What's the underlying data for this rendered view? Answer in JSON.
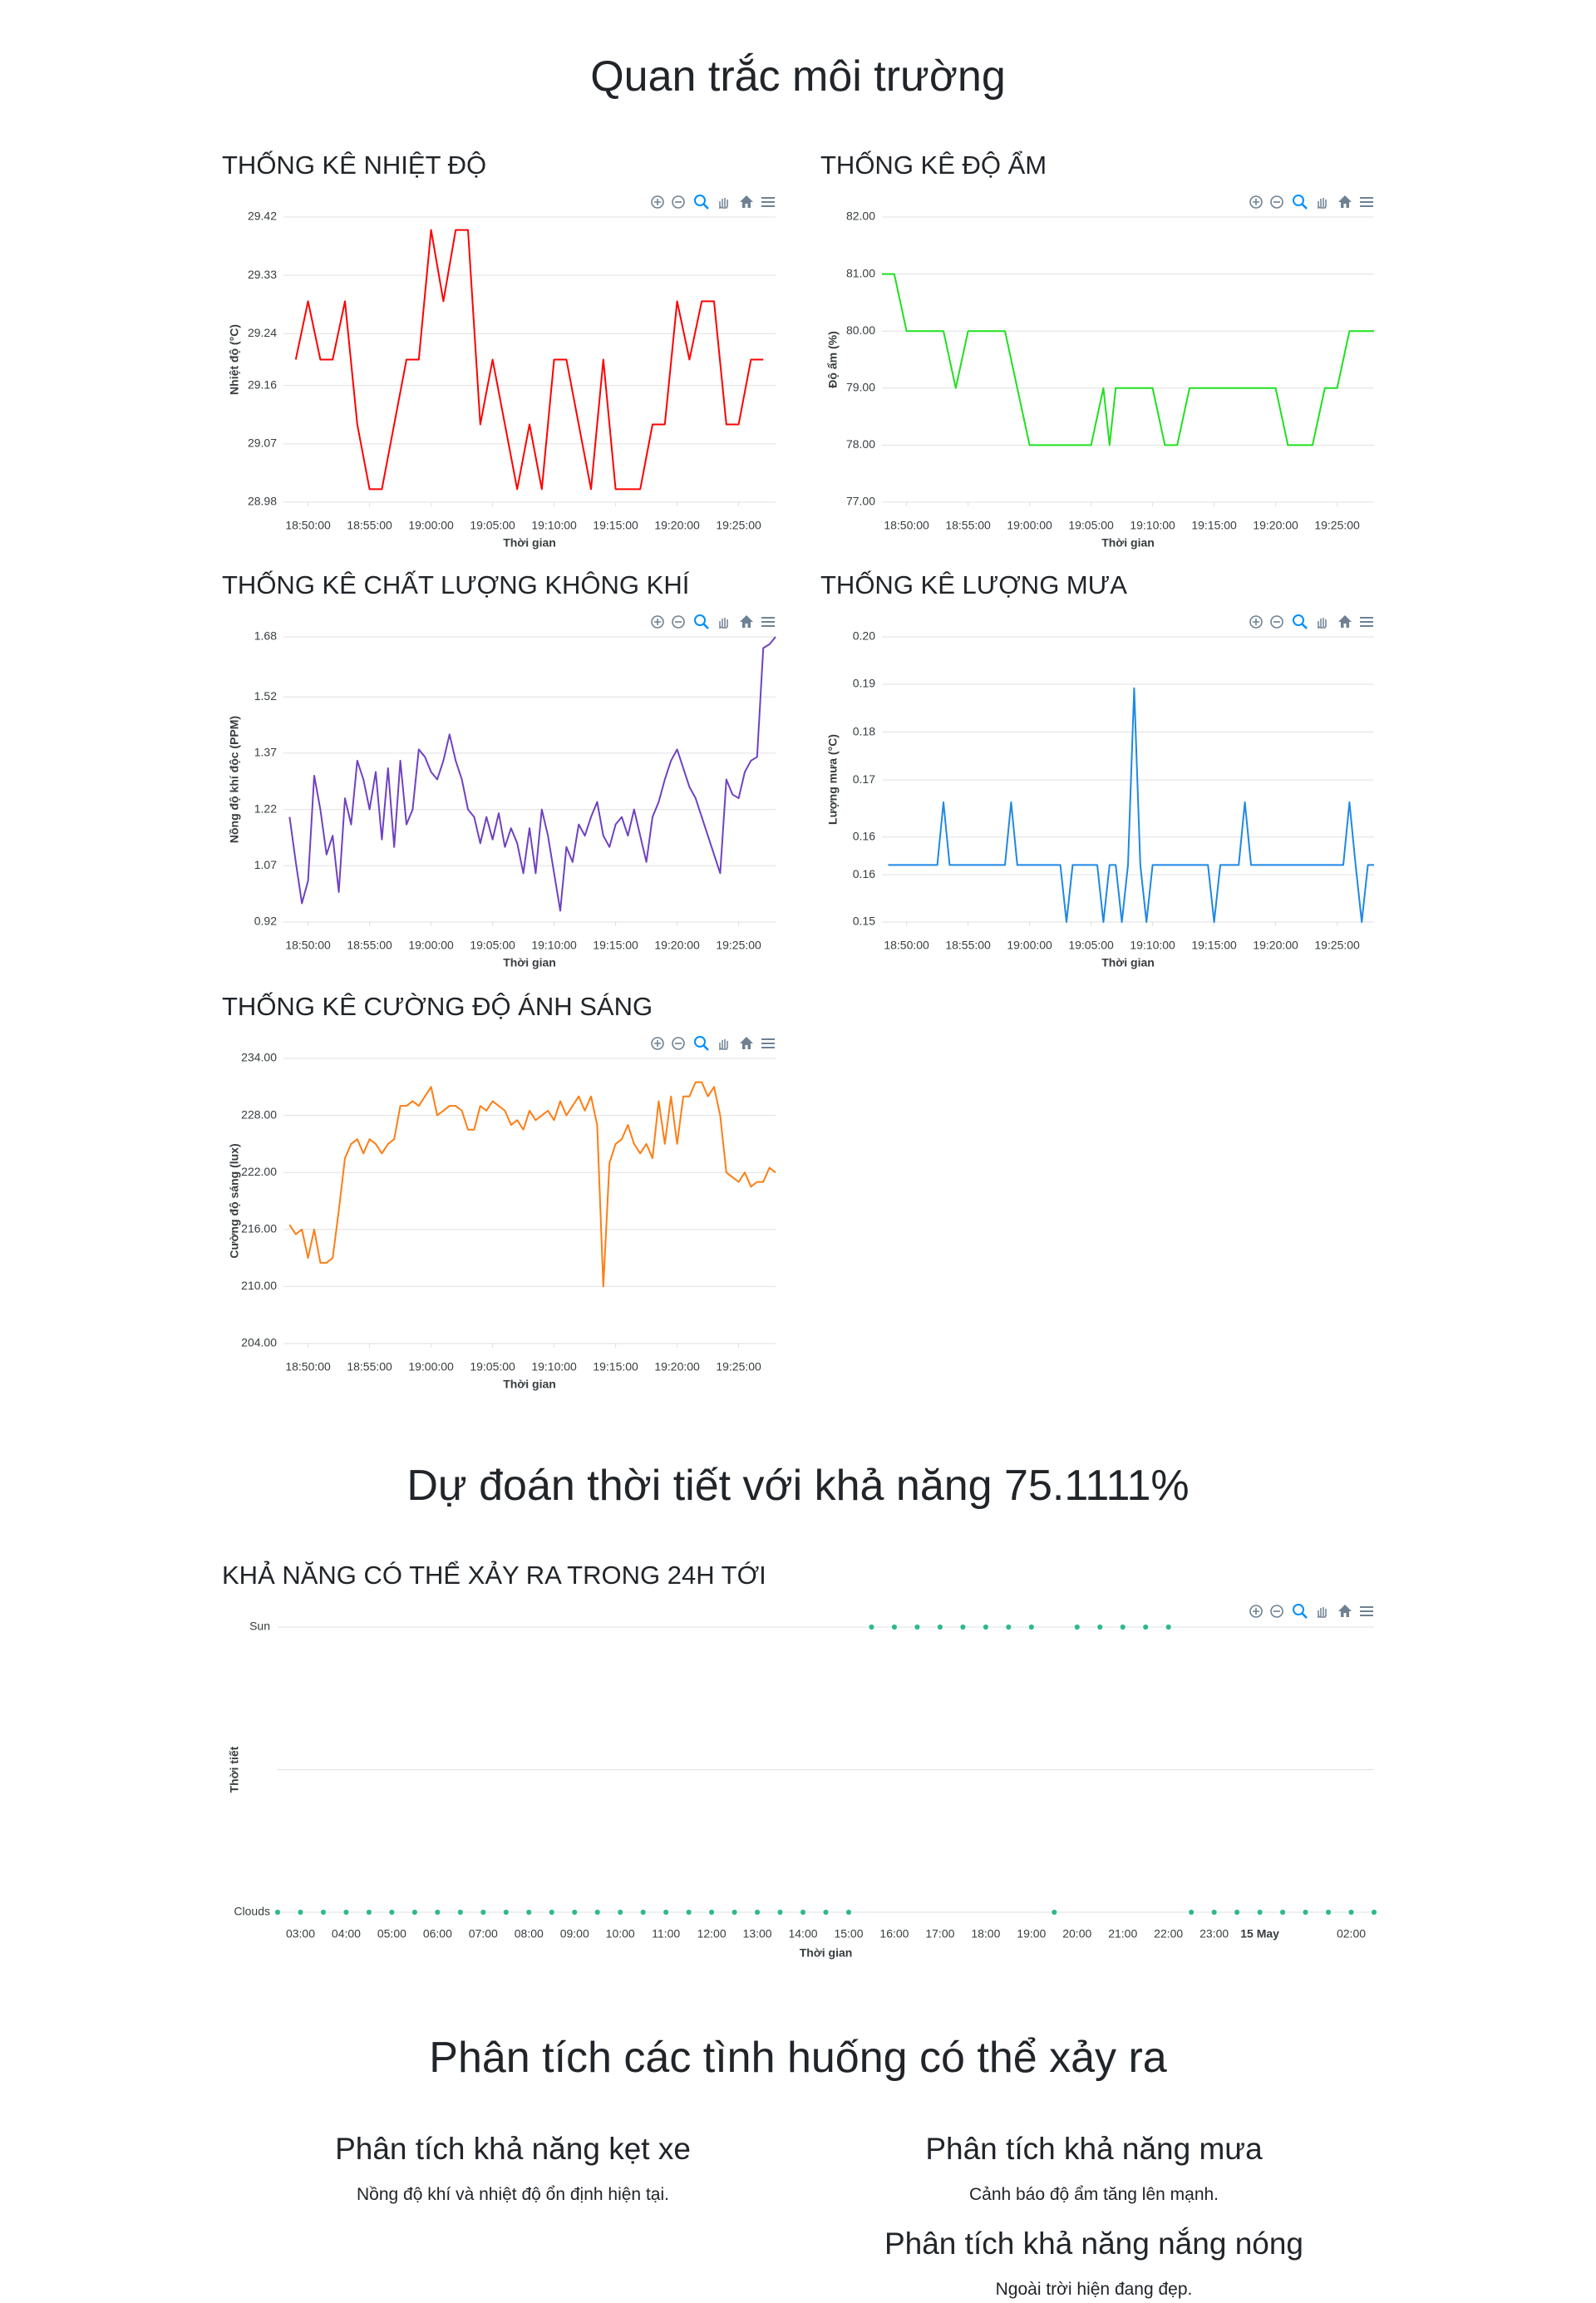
{
  "title": "Quan trắc môi trường",
  "prediction_title": "Dự đoán thời tiết với khả năng 75.1111%",
  "analysis": {
    "title": "Phân tích các tình huống có thể xảy ra",
    "items": [
      {
        "heading": "Phân tích khả năng kẹt xe",
        "text": "Nồng độ khí và nhiệt độ ổn định hiện tại."
      },
      {
        "heading": "Phân tích khả năng mưa",
        "text": "Cảnh báo độ ẩm tăng lên mạnh."
      },
      {
        "heading": "Phân tích khả năng nắng nóng",
        "text": "Ngoài trời hiện đang đẹp."
      }
    ]
  },
  "chart_data": [
    {
      "type": "line",
      "title": "THỐNG KÊ NHIỆT ĐỘ",
      "y_label": "Nhiệt độ (°C)",
      "x_label": "Thời gian",
      "grid": true,
      "xlim": [
        "18:48:00",
        "19:28:00"
      ],
      "xticks": [
        "18:50:00",
        "18:55:00",
        "19:00:00",
        "19:05:00",
        "19:10:00",
        "19:15:00",
        "19:20:00",
        "19:25:00"
      ],
      "ylim": [
        28.98,
        29.42
      ],
      "yticks": [
        28.98,
        29.07,
        29.16,
        29.24,
        29.33,
        29.42
      ],
      "x": [
        "18:49:00",
        "18:50:00",
        "18:51:00",
        "18:52:00",
        "18:53:00",
        "18:54:00",
        "18:55:00",
        "18:56:00",
        "18:57:00",
        "18:58:00",
        "18:59:00",
        "19:00:00",
        "19:01:00",
        "19:02:00",
        "19:03:00",
        "19:04:00",
        "19:05:00",
        "19:06:00",
        "19:07:00",
        "19:08:00",
        "19:09:00",
        "19:10:00",
        "19:11:00",
        "19:12:00",
        "19:13:00",
        "19:14:00",
        "19:15:00",
        "19:16:00",
        "19:17:00",
        "19:18:00",
        "19:19:00",
        "19:20:00",
        "19:21:00",
        "19:22:00",
        "19:23:00",
        "19:24:00",
        "19:25:00",
        "19:26:00",
        "19:27:00"
      ],
      "series": [
        {
          "name": "Nhiệt độ",
          "color": "#ff0000",
          "values": [
            29.2,
            29.29,
            29.2,
            29.2,
            29.29,
            29.1,
            29.0,
            29.0,
            29.1,
            29.2,
            29.2,
            29.4,
            29.29,
            29.4,
            29.4,
            29.1,
            29.2,
            29.1,
            29.0,
            29.1,
            29.0,
            29.2,
            29.2,
            29.1,
            29.0,
            29.2,
            29.0,
            29.0,
            29.0,
            29.1,
            29.1,
            29.29,
            29.2,
            29.29,
            29.29,
            29.1,
            29.1,
            29.2,
            29.2
          ]
        }
      ]
    },
    {
      "type": "line",
      "title": "THỐNG KÊ ĐỘ ẨM",
      "y_label": "Độ ẩm (%)",
      "x_label": "Thời gian",
      "grid": true,
      "xlim": [
        "18:48:00",
        "19:28:00"
      ],
      "xticks": [
        "18:50:00",
        "18:55:00",
        "19:00:00",
        "19:05:00",
        "19:10:00",
        "19:15:00",
        "19:20:00",
        "19:25:00"
      ],
      "ylim": [
        77,
        82
      ],
      "yticks": [
        {
          "value": 77,
          "label": "77.00"
        },
        {
          "value": 78,
          "label": "78.00"
        },
        {
          "value": 79,
          "label": "79.00"
        },
        {
          "value": 80,
          "label": "80.00"
        },
        {
          "value": 81,
          "label": "81.00"
        },
        {
          "value": 82,
          "label": "82.00"
        }
      ],
      "x": [
        "18:48:00",
        "18:49:00",
        "18:50:00",
        "18:51:00",
        "18:52:00",
        "18:53:00",
        "18:54:00",
        "18:55:00",
        "18:56:00",
        "18:57:00",
        "18:58:00",
        "18:59:00",
        "19:00:00",
        "19:01:00",
        "19:02:00",
        "19:03:00",
        "19:04:00",
        "19:05:00",
        "19:06:00",
        "19:06:30",
        "19:07:00",
        "19:08:00",
        "19:09:00",
        "19:10:00",
        "19:11:00",
        "19:12:00",
        "19:13:00",
        "19:14:00",
        "19:15:00",
        "19:16:00",
        "19:17:00",
        "19:18:00",
        "19:19:00",
        "19:20:00",
        "19:21:00",
        "19:22:00",
        "19:23:00",
        "19:24:00",
        "19:25:00",
        "19:26:00",
        "19:27:00",
        "19:28:00"
      ],
      "series": [
        {
          "name": "Độ ẩm",
          "color": "#1ee01e",
          "values": [
            81,
            81,
            80,
            80,
            80,
            80,
            79,
            80,
            80,
            80,
            80,
            79,
            78,
            78,
            78,
            78,
            78,
            78,
            79,
            78,
            79,
            79,
            79,
            79,
            78,
            78,
            79,
            79,
            79,
            79,
            79,
            79,
            79,
            79,
            78,
            78,
            78,
            79,
            79,
            80,
            80,
            80
          ]
        }
      ]
    },
    {
      "type": "line",
      "title": "THỐNG KÊ CHẤT LƯỢNG KHÔNG KHÍ",
      "y_label": "Nồng độ khí độc (PPM)",
      "x_label": "Thời gian",
      "grid": true,
      "xlim": [
        "18:48:00",
        "19:28:00"
      ],
      "xticks": [
        "18:50:00",
        "18:55:00",
        "19:00:00",
        "19:05:00",
        "19:10:00",
        "19:15:00",
        "19:20:00",
        "19:25:00"
      ],
      "ylim": [
        0.92,
        1.68
      ],
      "yticks": [
        0.92,
        1.07,
        1.22,
        1.37,
        1.52,
        1.68
      ],
      "x": [
        "18:48:30",
        "18:49:00",
        "18:49:30",
        "18:50:00",
        "18:50:30",
        "18:51:00",
        "18:51:30",
        "18:52:00",
        "18:52:30",
        "18:53:00",
        "18:53:30",
        "18:54:00",
        "18:54:30",
        "18:55:00",
        "18:55:30",
        "18:56:00",
        "18:56:30",
        "18:57:00",
        "18:57:30",
        "18:58:00",
        "18:58:30",
        "18:59:00",
        "18:59:30",
        "19:00:00",
        "19:00:30",
        "19:01:00",
        "19:01:30",
        "19:02:00",
        "19:02:30",
        "19:03:00",
        "19:03:30",
        "19:04:00",
        "19:04:30",
        "19:05:00",
        "19:05:30",
        "19:06:00",
        "19:06:30",
        "19:07:00",
        "19:07:30",
        "19:08:00",
        "19:08:30",
        "19:09:00",
        "19:09:30",
        "19:10:00",
        "19:10:30",
        "19:11:00",
        "19:11:30",
        "19:12:00",
        "19:12:30",
        "19:13:00",
        "19:13:30",
        "19:14:00",
        "19:14:30",
        "19:15:00",
        "19:15:30",
        "19:16:00",
        "19:16:30",
        "19:17:00",
        "19:17:30",
        "19:18:00",
        "19:18:30",
        "19:19:00",
        "19:19:30",
        "19:20:00",
        "19:20:30",
        "19:21:00",
        "19:21:30",
        "19:22:00",
        "19:22:30",
        "19:23:00",
        "19:23:30",
        "19:24:00",
        "19:24:30",
        "19:25:00",
        "19:25:30",
        "19:26:00",
        "19:26:30",
        "19:27:00",
        "19:27:30",
        "19:28:00"
      ],
      "series": [
        {
          "name": "Nồng độ khí độc",
          "color": "#6f42c1",
          "values": [
            1.2,
            1.08,
            0.97,
            1.03,
            1.31,
            1.22,
            1.1,
            1.15,
            1.0,
            1.25,
            1.18,
            1.35,
            1.3,
            1.22,
            1.32,
            1.14,
            1.33,
            1.12,
            1.35,
            1.18,
            1.22,
            1.38,
            1.36,
            1.32,
            1.3,
            1.35,
            1.42,
            1.35,
            1.3,
            1.22,
            1.2,
            1.13,
            1.2,
            1.14,
            1.21,
            1.12,
            1.17,
            1.13,
            1.05,
            1.17,
            1.05,
            1.22,
            1.15,
            1.05,
            0.95,
            1.12,
            1.08,
            1.18,
            1.15,
            1.2,
            1.24,
            1.15,
            1.12,
            1.18,
            1.2,
            1.15,
            1.22,
            1.15,
            1.08,
            1.2,
            1.24,
            1.3,
            1.35,
            1.38,
            1.33,
            1.28,
            1.25,
            1.2,
            1.15,
            1.1,
            1.05,
            1.3,
            1.26,
            1.25,
            1.32,
            1.35,
            1.36,
            1.65,
            1.66,
            1.68
          ]
        }
      ]
    },
    {
      "type": "line",
      "title": "THỐNG KÊ LƯỢNG MƯA",
      "y_label": "Lượng mưa (°C)",
      "x_label": "Thời gian",
      "grid": true,
      "xlim": [
        "18:48:00",
        "19:28:00"
      ],
      "xticks": [
        "18:50:00",
        "18:55:00",
        "19:00:00",
        "19:05:00",
        "19:10:00",
        "19:15:00",
        "19:20:00",
        "19:25:00"
      ],
      "ylim": [
        0.15,
        0.2
      ],
      "yticks": [
        0.15,
        {
          "value": 0.1583,
          "label": "0.16"
        },
        {
          "value": 0.1649,
          "label": "0.16"
        },
        {
          "value": 0.1749,
          "label": "0.17"
        },
        {
          "value": 0.1833,
          "label": "0.18"
        },
        {
          "value": 0.1917,
          "label": "0.19"
        },
        {
          "value": 0.2,
          "label": "0.20"
        }
      ],
      "x": [
        "18:48:30",
        "18:52:30",
        "18:53:00",
        "18:53:30",
        "18:58:00",
        "18:58:30",
        "18:59:00",
        "19:02:30",
        "19:03:00",
        "19:03:30",
        "19:05:30",
        "19:06:00",
        "19:06:30",
        "19:07:00",
        "19:07:30",
        "19:08:00",
        "19:08:30",
        "19:09:00",
        "19:09:30",
        "19:10:00",
        "19:14:30",
        "19:15:00",
        "19:15:30",
        "19:17:00",
        "19:17:30",
        "19:18:00",
        "19:25:30",
        "19:26:00",
        "19:26:30",
        "19:27:00",
        "19:27:30",
        "19:28:00"
      ],
      "series": [
        {
          "name": "Lượng mưa",
          "color": "#1e88e5",
          "values": [
            0.16,
            0.16,
            0.171,
            0.16,
            0.16,
            0.171,
            0.16,
            0.16,
            0.15,
            0.16,
            0.16,
            0.15,
            0.16,
            0.16,
            0.15,
            0.16,
            0.191,
            0.16,
            0.15,
            0.16,
            0.16,
            0.15,
            0.16,
            0.16,
            0.171,
            0.16,
            0.16,
            0.171,
            0.16,
            0.15,
            0.16,
            0.16
          ]
        }
      ]
    },
    {
      "type": "line",
      "title": "THỐNG KÊ CƯỜNG ĐỘ ÁNH SÁNG",
      "y_label": "Cường độ sáng (lux)",
      "x_label": "Thời gian",
      "grid": true,
      "xlim": [
        "18:48:00",
        "19:28:00"
      ],
      "xticks": [
        "18:50:00",
        "18:55:00",
        "19:00:00",
        "19:05:00",
        "19:10:00",
        "19:15:00",
        "19:20:00",
        "19:25:00"
      ],
      "ylim": [
        204,
        234
      ],
      "yticks": [
        {
          "value": 204,
          "label": "204.00"
        },
        {
          "value": 210,
          "label": "210.00"
        },
        {
          "value": 216,
          "label": "216.00"
        },
        {
          "value": 222,
          "label": "222.00"
        },
        {
          "value": 228,
          "label": "228.00"
        },
        {
          "value": 234,
          "label": "234.00"
        }
      ],
      "x": [
        "18:48:30",
        "18:49:00",
        "18:49:30",
        "18:50:00",
        "18:50:30",
        "18:51:00",
        "18:51:30",
        "18:52:00",
        "18:52:30",
        "18:53:00",
        "18:53:30",
        "18:54:00",
        "18:54:30",
        "18:55:00",
        "18:55:30",
        "18:56:00",
        "18:56:30",
        "18:57:00",
        "18:57:30",
        "18:58:00",
        "18:58:30",
        "18:59:00",
        "18:59:30",
        "19:00:00",
        "19:00:30",
        "19:01:00",
        "19:01:30",
        "19:02:00",
        "19:02:30",
        "19:03:00",
        "19:03:30",
        "19:04:00",
        "19:04:30",
        "19:05:00",
        "19:05:30",
        "19:06:00",
        "19:06:30",
        "19:07:00",
        "19:07:30",
        "19:08:00",
        "19:08:30",
        "19:09:00",
        "19:09:30",
        "19:10:00",
        "19:10:30",
        "19:11:00",
        "19:11:30",
        "19:12:00",
        "19:12:30",
        "19:13:00",
        "19:13:30",
        "19:14:00",
        "19:14:30",
        "19:15:00",
        "19:15:30",
        "19:16:00",
        "19:16:30",
        "19:17:00",
        "19:17:30",
        "19:18:00",
        "19:18:30",
        "19:19:00",
        "19:19:30",
        "19:20:00",
        "19:20:30",
        "19:21:00",
        "19:21:30",
        "19:22:00",
        "19:22:30",
        "19:23:00",
        "19:23:30",
        "19:24:00",
        "19:24:30",
        "19:25:00",
        "19:25:30",
        "19:26:00",
        "19:26:30",
        "19:27:00",
        "19:27:30",
        "19:28:00"
      ],
      "series": [
        {
          "name": "Cường độ sáng",
          "color": "#fd7e14",
          "values": [
            216.5,
            215.5,
            216,
            213,
            216,
            212.5,
            212.5,
            213,
            218,
            223.5,
            225,
            225.5,
            224,
            225.5,
            225,
            224,
            225,
            225.5,
            229,
            229,
            229.5,
            229,
            230,
            231,
            228,
            228.5,
            229,
            229,
            228.5,
            226.5,
            226.5,
            229,
            228.5,
            229.5,
            229,
            228.5,
            227,
            227.5,
            226.5,
            228.5,
            227.5,
            228,
            228.5,
            227.5,
            229.5,
            228,
            229,
            230,
            228.5,
            230,
            227,
            210,
            223,
            225,
            225.5,
            227,
            225,
            224,
            225,
            223.5,
            229.5,
            225,
            230,
            225,
            230,
            230,
            231.5,
            231.5,
            230,
            231,
            228,
            222,
            221.5,
            221,
            222,
            220.5,
            221,
            221,
            222.5,
            222
          ]
        }
      ]
    },
    {
      "type": "scatter",
      "title": "KHẢ NĂNG CÓ THỂ XẢY RA TRONG 24H TỚI",
      "y_label": "Thời tiết",
      "x_label": "Thời gian",
      "grid": true,
      "ycategories": [
        "Clouds",
        null,
        "Sun"
      ],
      "categories": [
        "02:30",
        "03:00",
        "03:30",
        "04:00",
        "04:30",
        "05:00",
        "05:30",
        "06:00",
        "06:30",
        "07:00",
        "07:30",
        "08:00",
        "08:30",
        "09:00",
        "09:30",
        "10:00",
        "10:30",
        "11:00",
        "11:30",
        "12:00",
        "12:30",
        "13:00",
        "13:30",
        "14:00",
        "14:30",
        "15:00",
        "15:30",
        "16:00",
        "16:30",
        "17:00",
        "17:30",
        "18:00",
        "18:30",
        "19:00",
        "19:30",
        "20:00",
        "20:30",
        "21:00",
        "21:30",
        "22:00",
        "22:30",
        "23:00",
        "23:30",
        "00:00",
        "00:30",
        "01:00",
        "01:30",
        "02:00",
        "02:30"
      ],
      "xticks": [
        "03:00",
        "04:00",
        "05:00",
        "06:00",
        "07:00",
        "08:00",
        "09:00",
        "10:00",
        "11:00",
        "12:00",
        "13:00",
        "14:00",
        "15:00",
        "16:00",
        "17:00",
        "18:00",
        "19:00",
        "20:00",
        "21:00",
        "22:00",
        "23:00",
        {
          "value": "00:00",
          "label": "15 May"
        },
        "02:00"
      ],
      "series": [
        {
          "name": "Thời tiết",
          "color": "#2fb98d",
          "values": [
            "Clouds",
            "Clouds",
            "Clouds",
            "Clouds",
            "Clouds",
            "Clouds",
            "Clouds",
            "Clouds",
            "Clouds",
            "Clouds",
            "Clouds",
            "Clouds",
            "Clouds",
            "Clouds",
            "Clouds",
            "Clouds",
            "Clouds",
            "Clouds",
            "Clouds",
            "Clouds",
            "Clouds",
            "Clouds",
            "Clouds",
            "Clouds",
            "Clouds",
            "Clouds",
            "Sun",
            "Sun",
            "Sun",
            "Sun",
            "Sun",
            "Sun",
            "Sun",
            "Sun",
            "Clouds",
            "Sun",
            "Sun",
            "Sun",
            "Sun",
            "Sun",
            "Clouds",
            "Clouds",
            "Clouds",
            "Clouds",
            "Clouds",
            "Clouds",
            "Clouds",
            "Clouds",
            "Clouds"
          ]
        }
      ]
    }
  ]
}
